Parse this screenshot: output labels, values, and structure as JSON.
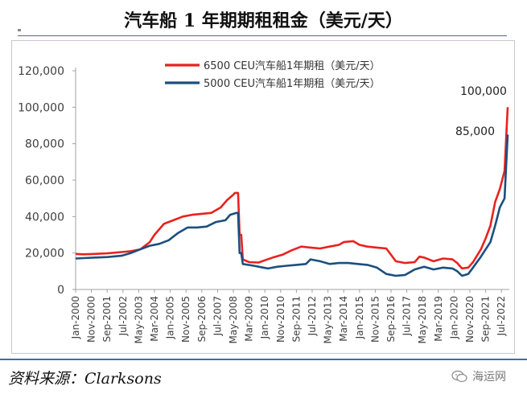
{
  "title": "汽车船 1 年期期租租金（美元/天）",
  "source": "资料来源：Clarksons",
  "watermark": "海运网",
  "colors": {
    "series_red": "#e8221e",
    "series_blue": "#1b4f7e",
    "axis": "#a0a0a0",
    "text": "#404040"
  },
  "chart_data": {
    "type": "line",
    "ylim": [
      0,
      120000
    ],
    "yticks": [
      "0",
      "20,000",
      "40,000",
      "60,000",
      "80,000",
      "100,000",
      "120,000"
    ],
    "xlim": [
      "2000-01",
      "2022-12"
    ],
    "xticks": [
      "Jan-2000",
      "Nov-2000",
      "Sep-2001",
      "Jul-2002",
      "May-2003",
      "Mar-2004",
      "Jan-2005",
      "Nov-2005",
      "Sep-2006",
      "Jul-2007",
      "May-2008",
      "Mar-2009",
      "Jan-2010",
      "Nov-2010",
      "Sep-2011",
      "Jul-2012",
      "May-2013",
      "Mar-2014",
      "Jan-2015",
      "Nov-2015",
      "Sep-2016",
      "Jul-2017",
      "May-2018",
      "Mar-2019",
      "Jan-2020",
      "Nov-2020",
      "Sep-2021",
      "Jul-2022"
    ],
    "legend_position": "top-center",
    "annotations": [
      {
        "text": "100,000",
        "x": "2022-11",
        "y": 100000
      },
      {
        "text": "85,000",
        "x": "2022-11",
        "y": 85000
      }
    ],
    "series": [
      {
        "name": "6500 CEU汽车船1年期租（美元/天）",
        "color": "#e8221e",
        "points": [
          [
            "2000-01",
            19500
          ],
          [
            "2000-06",
            19300
          ],
          [
            "2001-01",
            19500
          ],
          [
            "2001-09",
            19800
          ],
          [
            "2002-06",
            20500
          ],
          [
            "2002-12",
            21000
          ],
          [
            "2003-06",
            22000
          ],
          [
            "2003-12",
            26000
          ],
          [
            "2004-03",
            30000
          ],
          [
            "2004-09",
            36000
          ],
          [
            "2005-03",
            38000
          ],
          [
            "2005-09",
            40000
          ],
          [
            "2006-03",
            41000
          ],
          [
            "2006-09",
            41500
          ],
          [
            "2007-03",
            42000
          ],
          [
            "2007-09",
            45000
          ],
          [
            "2008-01",
            49000
          ],
          [
            "2008-05",
            52000
          ],
          [
            "2008-06",
            53000
          ],
          [
            "2008-08",
            53000
          ],
          [
            "2008-09",
            30000
          ],
          [
            "2008-10",
            30000
          ],
          [
            "2008-11",
            16500
          ],
          [
            "2009-03",
            15000
          ],
          [
            "2009-09",
            14800
          ],
          [
            "2010-01",
            16000
          ],
          [
            "2010-06",
            17500
          ],
          [
            "2010-12",
            19000
          ],
          [
            "2011-06",
            21500
          ],
          [
            "2011-12",
            23500
          ],
          [
            "2012-06",
            23000
          ],
          [
            "2012-12",
            22500
          ],
          [
            "2013-06",
            23500
          ],
          [
            "2013-12",
            24500
          ],
          [
            "2014-03",
            26000
          ],
          [
            "2014-09",
            26500
          ],
          [
            "2015-01",
            24500
          ],
          [
            "2015-06",
            23500
          ],
          [
            "2015-12",
            23000
          ],
          [
            "2016-06",
            22500
          ],
          [
            "2016-09",
            19000
          ],
          [
            "2016-12",
            15500
          ],
          [
            "2017-06",
            14500
          ],
          [
            "2017-12",
            15000
          ],
          [
            "2018-03",
            18000
          ],
          [
            "2018-06",
            17500
          ],
          [
            "2018-12",
            15500
          ],
          [
            "2019-06",
            17000
          ],
          [
            "2019-12",
            16500
          ],
          [
            "2020-03",
            14500
          ],
          [
            "2020-06",
            11500
          ],
          [
            "2020-10",
            12000
          ],
          [
            "2021-01",
            15000
          ],
          [
            "2021-06",
            22000
          ],
          [
            "2021-09",
            28000
          ],
          [
            "2021-12",
            35000
          ],
          [
            "2022-03",
            48000
          ],
          [
            "2022-06",
            55000
          ],
          [
            "2022-09",
            65000
          ],
          [
            "2022-11",
            100000
          ]
        ]
      },
      {
        "name": "5000 CEU汽车船1年期租（美元/天）",
        "color": "#1b4f7e",
        "points": [
          [
            "2000-01",
            17000
          ],
          [
            "2000-06",
            17200
          ],
          [
            "2001-01",
            17500
          ],
          [
            "2001-09",
            17800
          ],
          [
            "2002-06",
            18500
          ],
          [
            "2002-12",
            20000
          ],
          [
            "2003-06",
            22000
          ],
          [
            "2003-12",
            24000
          ],
          [
            "2004-06",
            25000
          ],
          [
            "2004-12",
            27000
          ],
          [
            "2005-06",
            31000
          ],
          [
            "2005-12",
            34000
          ],
          [
            "2006-06",
            34000
          ],
          [
            "2006-12",
            34500
          ],
          [
            "2007-06",
            37000
          ],
          [
            "2007-12",
            38000
          ],
          [
            "2008-03",
            41000
          ],
          [
            "2008-07",
            42000
          ],
          [
            "2008-08",
            42000
          ],
          [
            "2008-09",
            20000
          ],
          [
            "2008-10",
            20000
          ],
          [
            "2008-11",
            14000
          ],
          [
            "2009-06",
            13000
          ],
          [
            "2009-12",
            12000
          ],
          [
            "2010-03",
            11500
          ],
          [
            "2010-09",
            12500
          ],
          [
            "2011-03",
            13000
          ],
          [
            "2011-09",
            13500
          ],
          [
            "2012-03",
            14000
          ],
          [
            "2012-06",
            16500
          ],
          [
            "2012-12",
            15500
          ],
          [
            "2013-06",
            14000
          ],
          [
            "2013-12",
            14500
          ],
          [
            "2014-06",
            14500
          ],
          [
            "2014-12",
            14000
          ],
          [
            "2015-06",
            13500
          ],
          [
            "2015-12",
            12000
          ],
          [
            "2016-06",
            8500
          ],
          [
            "2016-12",
            7500
          ],
          [
            "2017-06",
            8000
          ],
          [
            "2017-12",
            11000
          ],
          [
            "2018-06",
            12500
          ],
          [
            "2018-12",
            11000
          ],
          [
            "2019-06",
            12000
          ],
          [
            "2019-12",
            11500
          ],
          [
            "2020-03",
            10000
          ],
          [
            "2020-06",
            7500
          ],
          [
            "2020-10",
            8500
          ],
          [
            "2021-01",
            12000
          ],
          [
            "2021-06",
            18000
          ],
          [
            "2021-12",
            26000
          ],
          [
            "2022-03",
            35000
          ],
          [
            "2022-06",
            45000
          ],
          [
            "2022-09",
            50000
          ],
          [
            "2022-11",
            85000
          ]
        ]
      }
    ]
  }
}
